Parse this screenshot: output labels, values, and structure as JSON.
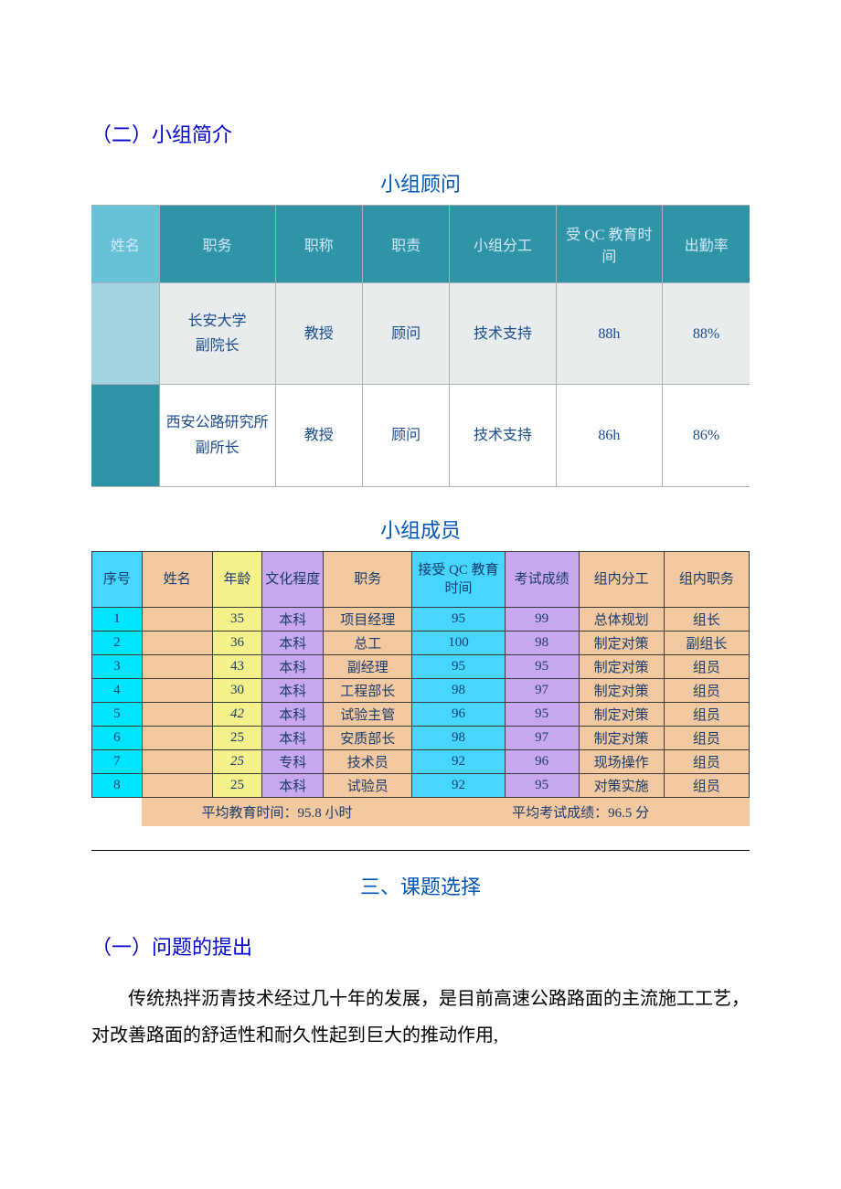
{
  "section2_heading": "（二）小组简介",
  "advisor": {
    "title": "小组顾问",
    "headers": [
      "姓名",
      "职务",
      "职称",
      "职责",
      "小组分工",
      "受 QC 教育时间",
      "出勤率"
    ],
    "col_widths": [
      "70px",
      "120px",
      "90px",
      "90px",
      "110px",
      "110px",
      "90px"
    ],
    "header_bg": "#2f95a6",
    "header_fg": "#d4e8ff",
    "name_header_bg": "#66c2d4",
    "body_fg": "#1a4b8c",
    "border_color": "#a8b0b4",
    "rows": [
      {
        "name": "",
        "position": "长安大学\n副院长",
        "title": "教授",
        "duty": "顾问",
        "role": "技术支持",
        "edu": "88h",
        "att": "88%"
      },
      {
        "name": "",
        "position": "西安公路研究所副所长",
        "title": "教授",
        "duty": "顾问",
        "role": "技术支持",
        "edu": "86h",
        "att": "86%"
      }
    ]
  },
  "members": {
    "title": "小组成员",
    "headers": [
      "序号",
      "姓名",
      "年龄",
      "文化程度",
      "职务",
      "接受 QC 教育时间",
      "考试成绩",
      "组内分工",
      "组内职务"
    ],
    "col_widths": [
      "54px",
      "76px",
      "54px",
      "66px",
      "96px",
      "100px",
      "80px",
      "92px",
      "92px"
    ],
    "header_colors": [
      "#47d6ff",
      "#f2c9a0",
      "#f5f28c",
      "#c8a9f0",
      "#f2c9a0",
      "#47d6ff",
      "#c8a9f0",
      "#f2c9a0",
      "#f2c9a0"
    ],
    "cell_colors": [
      "#00e5ff",
      "#f2c9a0",
      "#f5f28c",
      "#c8a9f0",
      "#f2c9a0",
      "#47d6ff",
      "#c8a9f0",
      "#f2c9a0",
      "#f2c9a0"
    ],
    "text_color": "#1a3a6a",
    "border_color": "#3a3a3a",
    "rows": [
      {
        "no": "1",
        "name": "",
        "age": "35",
        "edu": "本科",
        "pos": "项目经理",
        "qc": "95",
        "score": "99",
        "role": "总体规划",
        "title": "组长"
      },
      {
        "no": "2",
        "name": "",
        "age": "36",
        "edu": "本科",
        "pos": "总工",
        "qc": "100",
        "score": "98",
        "role": "制定对策",
        "title": "副组长"
      },
      {
        "no": "3",
        "name": "",
        "age": "43",
        "edu": "本科",
        "pos": "副经理",
        "qc": "95",
        "score": "95",
        "role": "制定对策",
        "title": "组员"
      },
      {
        "no": "4",
        "name": "",
        "age": "30",
        "edu": "本科",
        "pos": "工程部长",
        "qc": "98",
        "score": "97",
        "role": "制定对策",
        "title": "组员"
      },
      {
        "no": "5",
        "name": "",
        "age": "42",
        "age_italic": true,
        "edu": "本科",
        "pos": "试验主管",
        "qc": "96",
        "score": "95",
        "role": "制定对策",
        "title": "组员"
      },
      {
        "no": "6",
        "name": "",
        "age": "25",
        "edu": "本科",
        "pos": "安质部长",
        "qc": "98",
        "score": "97",
        "role": "制定对策",
        "title": "组员"
      },
      {
        "no": "7",
        "name": "",
        "age": "25",
        "age_italic": true,
        "edu": "专科",
        "pos": "技术员",
        "qc": "92",
        "score": "96",
        "role": "现场操作",
        "title": "组员"
      },
      {
        "no": "8",
        "name": "",
        "age": "25",
        "edu": "本科",
        "pos": "试验员",
        "qc": "92",
        "score": "95",
        "role": "对策实施",
        "title": "组员"
      }
    ],
    "avg": {
      "edu_label": "平均教育时间：95.8 小时",
      "score_label": "平均考试成绩：96.5 分",
      "bg": "#f2c9a0"
    }
  },
  "section3_heading": "三、课题选择",
  "sub3_1_heading": "（一）问题的提出",
  "body_para": "传统热拌沥青技术经过几十年的发展，是目前高速公路路面的主流施工工艺，对改善路面的舒适性和耐久性起到巨大的推动作用,",
  "colors": {
    "blue_heading": "#0000cc",
    "title_blue": "#0056b8"
  }
}
